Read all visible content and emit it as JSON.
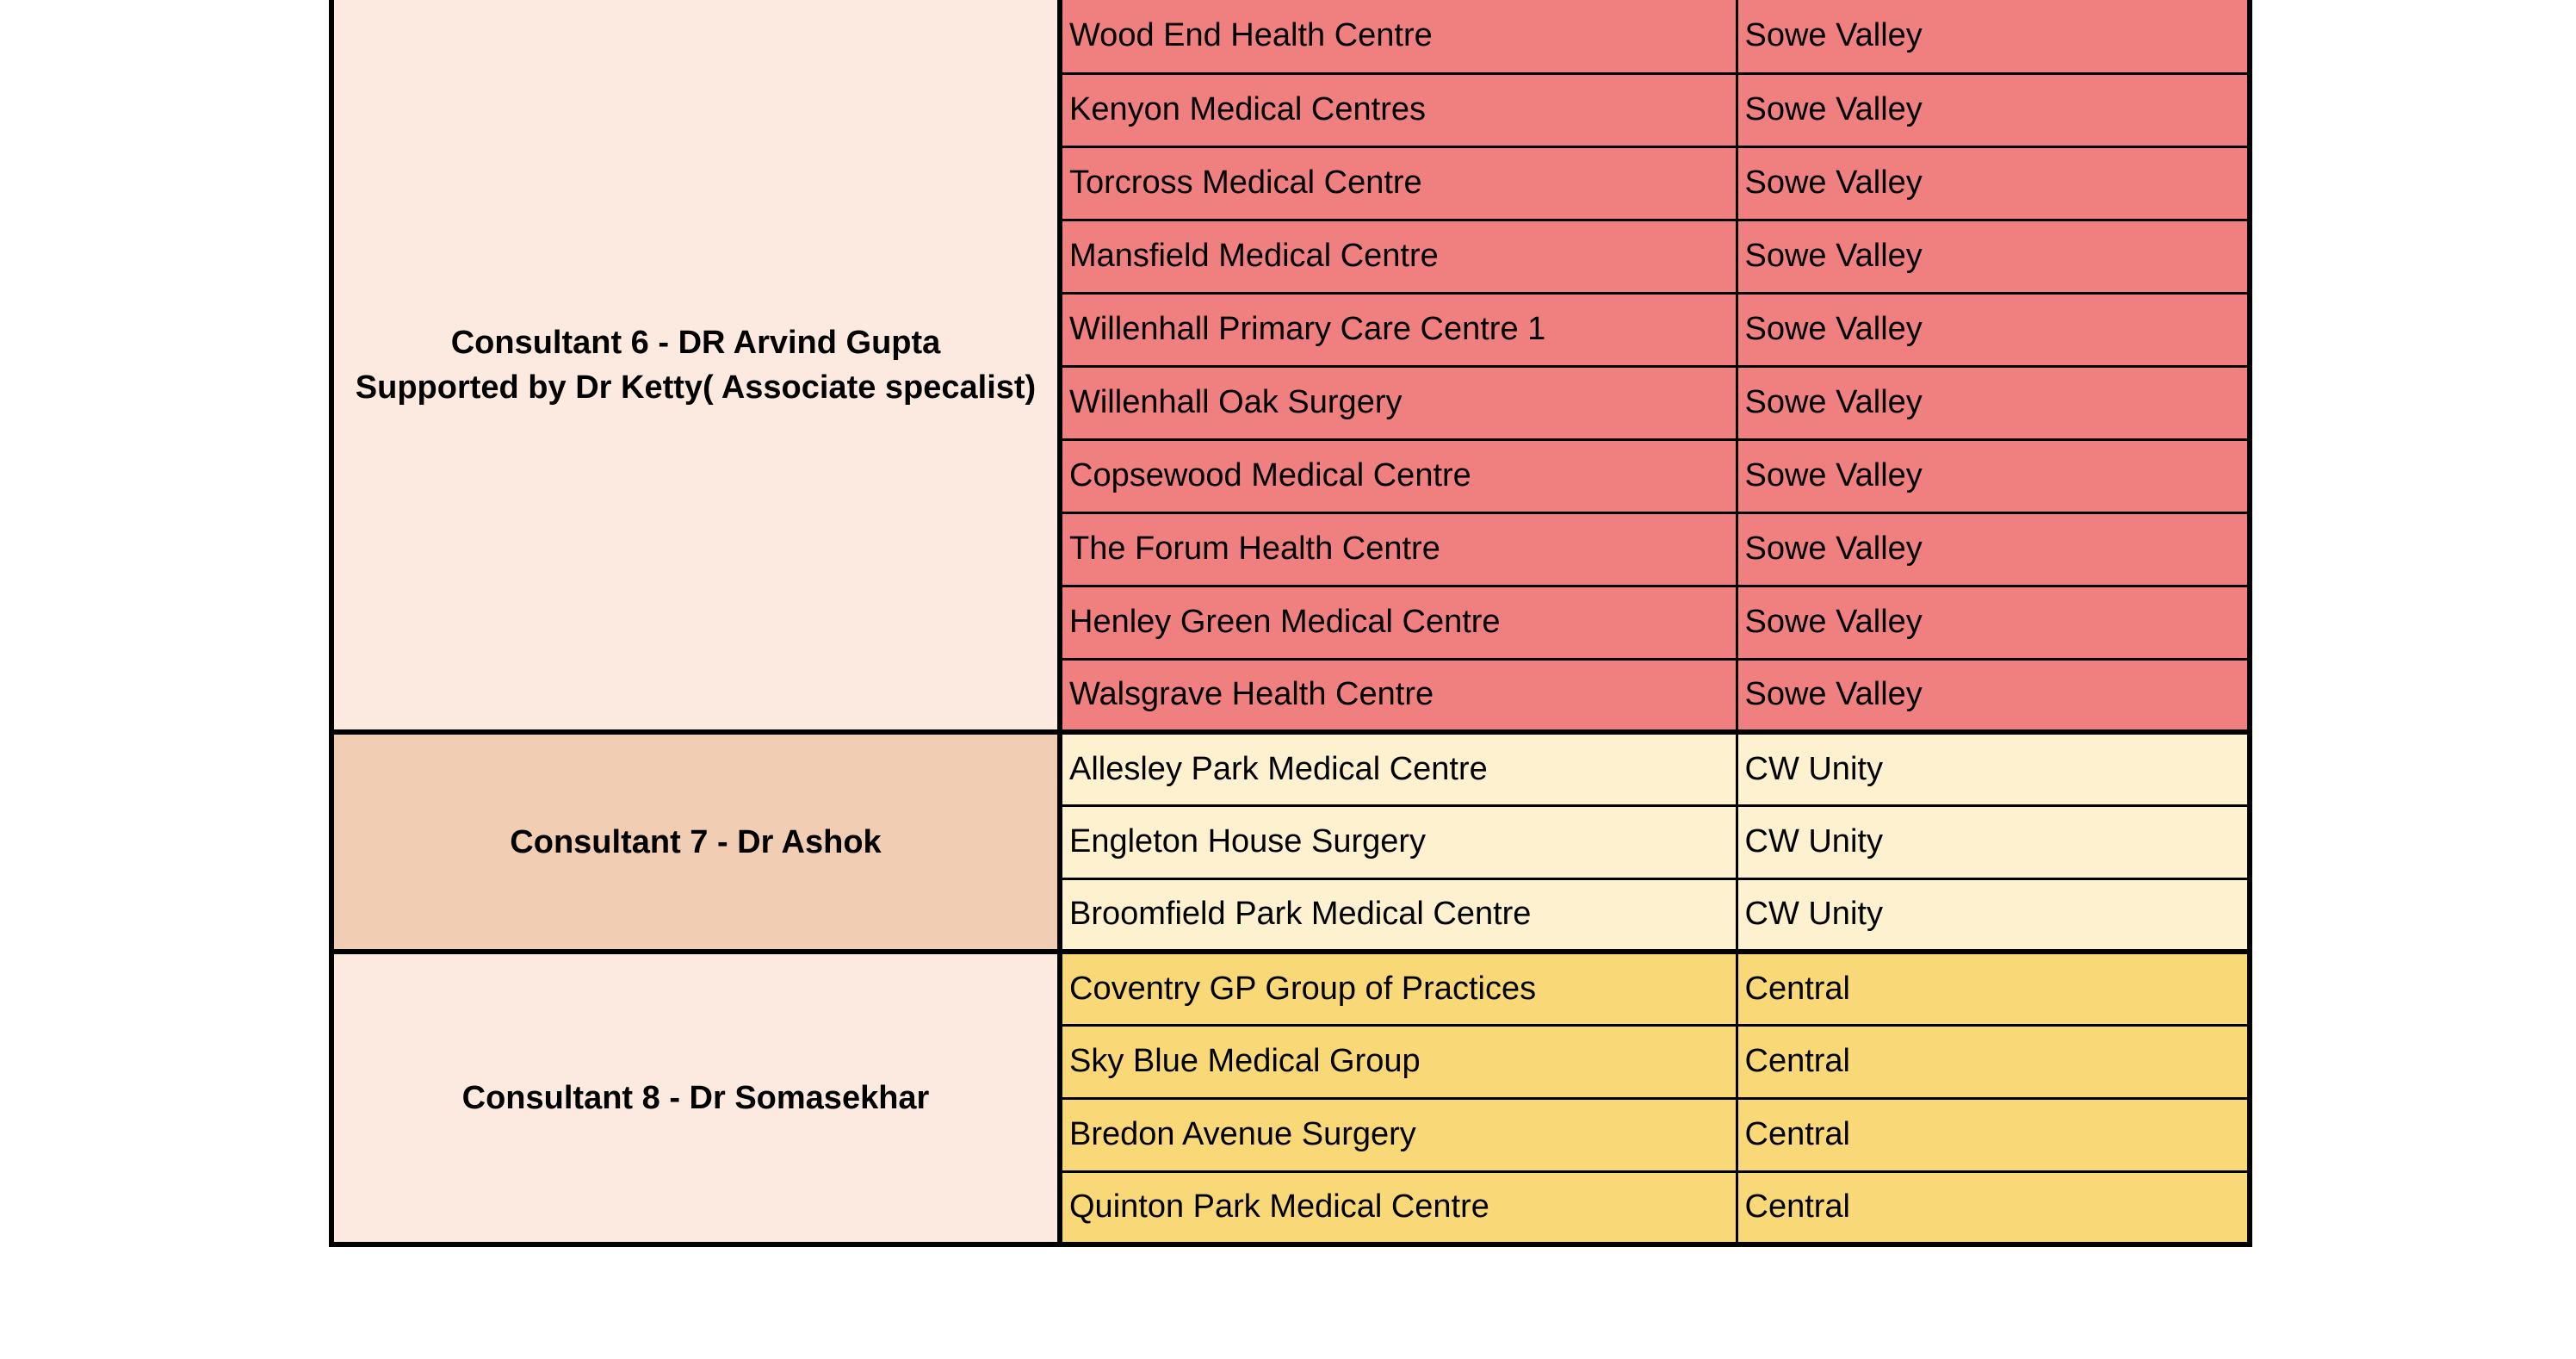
{
  "groups": [
    {
      "consultant_line1": "Consultant 6 - DR Arvind Gupta",
      "consultant_line2": "Supported by Dr Ketty( Associate specalist)",
      "fill": "#FCEAE1",
      "row_fill": "#F08080",
      "rows": [
        {
          "practice": "Wood End Health Centre",
          "area": "Sowe Valley"
        },
        {
          "practice": "Kenyon Medical Centres",
          "area": "Sowe Valley"
        },
        {
          "practice": "Torcross Medical Centre",
          "area": "Sowe Valley"
        },
        {
          "practice": "Mansfield Medical Centre",
          "area": "Sowe Valley"
        },
        {
          "practice": "Willenhall Primary Care Centre 1",
          "area": "Sowe Valley"
        },
        {
          "practice": "Willenhall Oak Surgery",
          "area": "Sowe Valley"
        },
        {
          "practice": "Copsewood Medical Centre",
          "area": "Sowe Valley"
        },
        {
          "practice": "The Forum Health Centre",
          "area": "Sowe Valley"
        },
        {
          "practice": "Henley Green Medical Centre",
          "area": "Sowe Valley"
        },
        {
          "practice": "Walsgrave Health Centre",
          "area": "Sowe Valley"
        }
      ]
    },
    {
      "consultant_line1": "Consultant 7 - Dr Ashok",
      "consultant_line2": "",
      "fill": "#F1CDB4",
      "row_fill": "#FDF1D0",
      "rows": [
        {
          "practice": "Allesley Park Medical Centre",
          "area": "CW Unity"
        },
        {
          "practice": "Engleton House Surgery",
          "area": "CW Unity"
        },
        {
          "practice": "Broomfield Park Medical Centre",
          "area": "CW Unity"
        }
      ]
    },
    {
      "consultant_line1": "Consultant 8 -  Dr Somasekhar",
      "consultant_line2": "",
      "fill": "#FCEAE1",
      "row_fill": "#F9D878",
      "rows": [
        {
          "practice": "Coventry GP Group of Practices",
          "area": "Central"
        },
        {
          "practice": "Sky Blue Medical Group",
          "area": "Central"
        },
        {
          "practice": "Bredon Avenue Surgery",
          "area": "Central"
        },
        {
          "practice": "Quinton Park Medical Centre",
          "area": "Central"
        }
      ]
    }
  ]
}
